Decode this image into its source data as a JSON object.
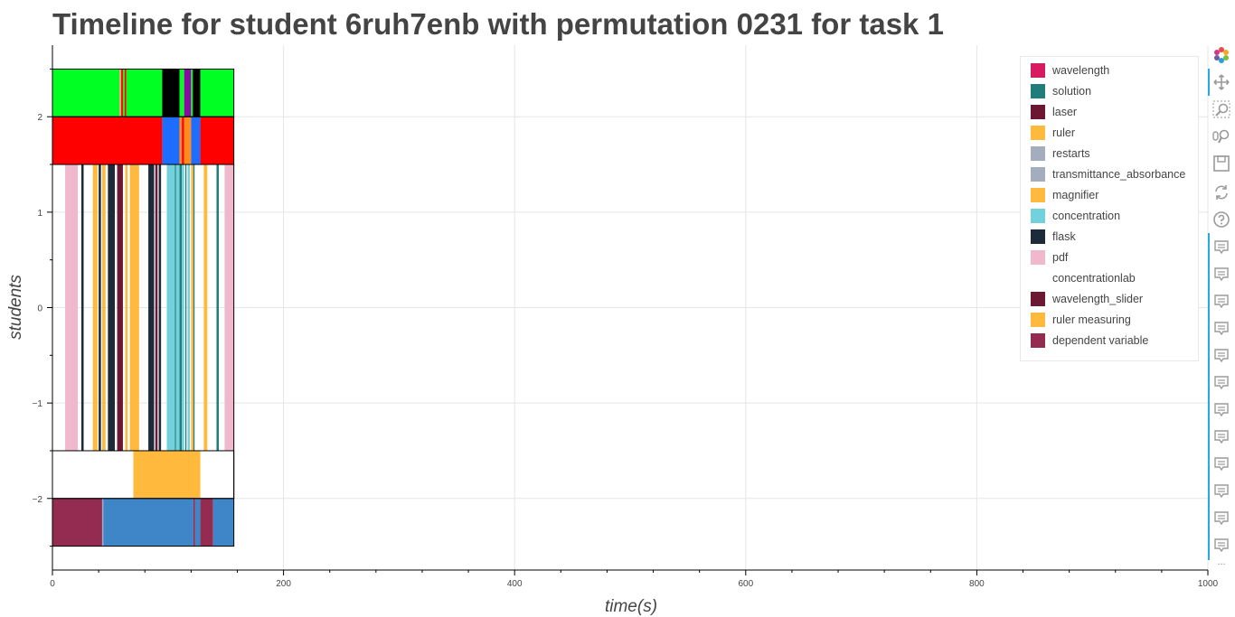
{
  "title": "Timeline for student 6ruh7enb with permutation 0231 for task 1",
  "chart_data": {
    "type": "timeline",
    "title": "Timeline for student 6ruh7enb with permutation 0231 for task 1",
    "xlabel": "time(s)",
    "ylabel": "students",
    "xlim": [
      0,
      1000
    ],
    "ylim": [
      -2.75,
      2.75
    ],
    "x_ticks": [
      0,
      200,
      400,
      600,
      800,
      1000
    ],
    "y_ticks": [
      -2,
      -1,
      0,
      1,
      2
    ],
    "y_tick_labels": [
      "−2",
      "−1",
      "0",
      "1",
      "2"
    ],
    "grid": true,
    "legend_position": "top-right",
    "legend": [
      {
        "label": "wavelength",
        "color": "#d81b60"
      },
      {
        "label": "solution",
        "color": "#1f7d7a"
      },
      {
        "label": "laser",
        "color": "#6c1832"
      },
      {
        "label": "ruler",
        "color": "#ffb93d"
      },
      {
        "label": "restarts",
        "color": "#a3adbd"
      },
      {
        "label": "transmittance_absorbance",
        "color": "#a3adbd"
      },
      {
        "label": "magnifier",
        "color": "#ffb93d"
      },
      {
        "label": "concentration",
        "color": "#72d1db"
      },
      {
        "label": "flask",
        "color": "#1c2a3a"
      },
      {
        "label": "pdf",
        "color": "#f0b8cb"
      },
      {
        "label": "concentrationlab",
        "color": "#ffffff"
      },
      {
        "label": "wavelength_slider",
        "color": "#6c1832"
      },
      {
        "label": "ruler measuring",
        "color": "#ffb93d"
      },
      {
        "label": "dependent variable",
        "color": "#942c51"
      }
    ],
    "rows": [
      {
        "y_from": 2,
        "y_to": 2.5,
        "segments": [
          {
            "start": 0,
            "end": 58,
            "color": "#00ff22"
          },
          {
            "start": 58,
            "end": 59.5,
            "color": "#e3a37e"
          },
          {
            "start": 59.5,
            "end": 61,
            "color": "#ff0000"
          },
          {
            "start": 61,
            "end": 62.5,
            "color": "#00ff22"
          },
          {
            "start": 62.5,
            "end": 64,
            "color": "#ff0000"
          },
          {
            "start": 64,
            "end": 95,
            "color": "#00ff22"
          },
          {
            "start": 95,
            "end": 110,
            "color": "#000000"
          },
          {
            "start": 110,
            "end": 114,
            "color": "#00ff22"
          },
          {
            "start": 114,
            "end": 120,
            "color": "#8a0ba4"
          },
          {
            "start": 120,
            "end": 121.5,
            "color": "#00ff22"
          },
          {
            "start": 121.5,
            "end": 128,
            "color": "#000000"
          },
          {
            "start": 128,
            "end": 157,
            "color": "#00ff22"
          }
        ]
      },
      {
        "y_from": 1.5,
        "y_to": 2,
        "segments": [
          {
            "start": 0,
            "end": 95,
            "color": "#ff0000"
          },
          {
            "start": 95,
            "end": 110,
            "color": "#1e6dff"
          },
          {
            "start": 110,
            "end": 112,
            "color": "#ff8c1a"
          },
          {
            "start": 112,
            "end": 114,
            "color": "#ff0000"
          },
          {
            "start": 114,
            "end": 120,
            "color": "#ff8c1a"
          },
          {
            "start": 120,
            "end": 128,
            "color": "#1e6dff"
          },
          {
            "start": 128,
            "end": 157,
            "color": "#ff0000"
          }
        ]
      },
      {
        "y_from": -1.5,
        "y_to": 1.5,
        "segments": [
          {
            "start": 11,
            "end": 22,
            "color": "#f0b8cb"
          },
          {
            "start": 25,
            "end": 27,
            "color": "#1c2a3a"
          },
          {
            "start": 35,
            "end": 39,
            "color": "#ffb93d"
          },
          {
            "start": 40,
            "end": 42,
            "color": "#1c2a3a"
          },
          {
            "start": 43,
            "end": 46,
            "color": "#ffb93d"
          },
          {
            "start": 48,
            "end": 54,
            "color": "#1c2a3a"
          },
          {
            "start": 56,
            "end": 61,
            "color": "#6c1832"
          },
          {
            "start": 63,
            "end": 65,
            "color": "#ffb93d"
          },
          {
            "start": 67,
            "end": 75,
            "color": "#ffb93d"
          },
          {
            "start": 83,
            "end": 88,
            "color": "#1c2a3a"
          },
          {
            "start": 89,
            "end": 91,
            "color": "#6c1832"
          },
          {
            "start": 92,
            "end": 94,
            "color": "#1c2a3a"
          },
          {
            "start": 99,
            "end": 106,
            "color": "#72d1db"
          },
          {
            "start": 106,
            "end": 107,
            "color": "#1f7d7a"
          },
          {
            "start": 107,
            "end": 110,
            "color": "#72d1db"
          },
          {
            "start": 110,
            "end": 112,
            "color": "#1f7d7a"
          },
          {
            "start": 112,
            "end": 114,
            "color": "#72d1db"
          },
          {
            "start": 115,
            "end": 116,
            "color": "#1f7d7a"
          },
          {
            "start": 117,
            "end": 119,
            "color": "#72d1db"
          },
          {
            "start": 120,
            "end": 122,
            "color": "#ffb93d"
          },
          {
            "start": 122,
            "end": 123,
            "color": "#1f7d7a"
          },
          {
            "start": 131,
            "end": 134,
            "color": "#ffb93d"
          },
          {
            "start": 142,
            "end": 144,
            "color": "#1f7d7a"
          },
          {
            "start": 149,
            "end": 157,
            "color": "#f0b8cb"
          }
        ]
      },
      {
        "y_from": -2,
        "y_to": -1.5,
        "segments": [
          {
            "start": 70,
            "end": 128,
            "color": "#ffb93d"
          }
        ]
      },
      {
        "y_from": -2.5,
        "y_to": -2,
        "segments": [
          {
            "start": 0,
            "end": 43,
            "color": "#942c51"
          },
          {
            "start": 43,
            "end": 44,
            "color": "#a3adbd"
          },
          {
            "start": 44,
            "end": 122,
            "color": "#3f86c8"
          },
          {
            "start": 122,
            "end": 123.5,
            "color": "#942c51"
          },
          {
            "start": 123.5,
            "end": 128,
            "color": "#3f86c8"
          },
          {
            "start": 128,
            "end": 139,
            "color": "#942c51"
          },
          {
            "start": 139,
            "end": 157,
            "color": "#3f86c8"
          }
        ]
      }
    ],
    "session_end": 157
  },
  "toolbar": {
    "tools": [
      {
        "name": "bokeh-logo-icon"
      },
      {
        "name": "pan-icon"
      },
      {
        "name": "box-zoom-icon"
      },
      {
        "name": "wheel-zoom-icon"
      },
      {
        "name": "save-icon"
      },
      {
        "name": "reset-icon"
      },
      {
        "name": "help-icon"
      },
      {
        "name": "hover-icon"
      }
    ],
    "hover_count": 12,
    "more_label": "..."
  }
}
